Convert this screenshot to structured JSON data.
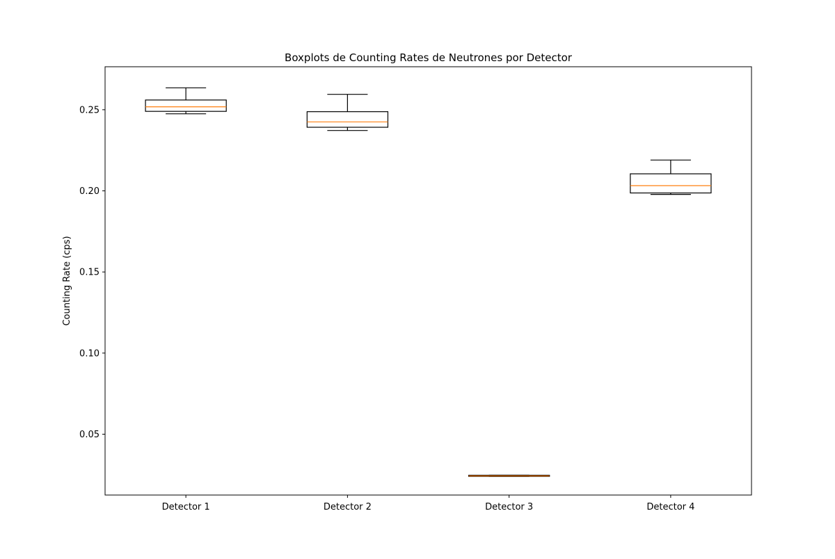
{
  "chart_data": {
    "type": "boxplot",
    "title": "Boxplots de Counting Rates de Neutrones por Detector",
    "xlabel": "",
    "ylabel": "Counting Rate (cps)",
    "ylim": [
      0.0125,
      0.2765
    ],
    "yticks": [
      0.05,
      0.1,
      0.15,
      0.2,
      0.25
    ],
    "ytick_labels": [
      "0.05",
      "0.10",
      "0.15",
      "0.20",
      "0.25"
    ],
    "grid": false,
    "legend": "none",
    "categories": [
      "Detector 1",
      "Detector 2",
      "Detector 3",
      "Detector 4"
    ],
    "boxes": [
      {
        "label": "Detector 1",
        "whisker_low": 0.2475,
        "q1": 0.249,
        "median": 0.2518,
        "q3": 0.256,
        "whisker_high": 0.2635
      },
      {
        "label": "Detector 2",
        "whisker_low": 0.2372,
        "q1": 0.2392,
        "median": 0.2425,
        "q3": 0.2488,
        "whisker_high": 0.2595
      },
      {
        "label": "Detector 3",
        "whisker_low": 0.024,
        "q1": 0.024,
        "median": 0.0243,
        "q3": 0.0247,
        "whisker_high": 0.0247
      },
      {
        "label": "Detector 4",
        "whisker_low": 0.1978,
        "q1": 0.1987,
        "median": 0.2032,
        "q3": 0.2105,
        "whisker_high": 0.219
      }
    ],
    "colors": {
      "box": "#000000",
      "median": "#ff7f0e",
      "axes": "#000000"
    }
  }
}
